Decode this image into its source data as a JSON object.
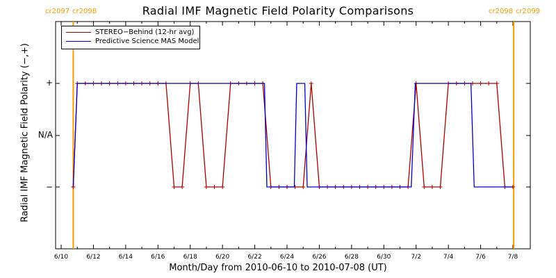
{
  "chart_data": {
    "type": "line",
    "title": "Radial IMF Magnetic Field Polarity Comparisons",
    "xlabel": "Month/Day from 2010-06-10 to 2010-07-08 (UT)",
    "ylabel": "Radial IMF Magnetic Field Polarity (−,+)",
    "xlim": [
      "2010-06-10",
      "2010-07-08"
    ],
    "x_tick_labels": [
      "6/10",
      "6/12",
      "6/14",
      "6/16",
      "6/18",
      "6/20",
      "6/22",
      "6/24",
      "6/26",
      "6/28",
      "6/30",
      "7/2",
      "7/4",
      "7/6",
      "7/8"
    ],
    "y_tick_labels": [
      "+",
      "N/A",
      "−"
    ],
    "y_levels": {
      "+": 1,
      "N/A": 0,
      "−": -1
    },
    "ylim": [
      -1.6,
      2.0
    ],
    "carrington_markers": [
      {
        "label_left": "cr2097",
        "label_right": "cr2098",
        "date": "2010-06-10.75"
      },
      {
        "label_left": "cr2098",
        "label_right": "cr2099",
        "date": "2010-07-08.05"
      }
    ],
    "colors": {
      "stereo": "#aa0000",
      "model": "#0000cc",
      "marker": "#ff9900",
      "frame": "#000000"
    },
    "series": [
      {
        "name": "STEREO−Behind (12-hr avg)",
        "color": "#aa0000",
        "x": [
          10.75,
          11.0,
          11.5,
          12.0,
          12.5,
          13.0,
          13.5,
          14.0,
          14.5,
          15.0,
          15.5,
          16.0,
          16.5,
          17.0,
          17.5,
          18.0,
          18.5,
          19.0,
          19.5,
          20.0,
          20.5,
          21.0,
          21.5,
          22.0,
          22.5,
          23.0,
          23.5,
          24.0,
          24.5,
          25.0,
          25.5,
          26.0,
          26.5,
          27.0,
          27.5,
          28.0,
          28.5,
          29.0,
          29.5,
          30.0,
          30.5,
          31.0,
          31.5,
          32.0,
          32.5,
          33.0,
          33.5,
          34.0,
          34.5,
          35.0,
          35.5,
          36.0,
          36.5,
          37.0,
          37.5,
          38.0
        ],
        "y": [
          -1,
          1,
          1,
          1,
          1,
          1,
          1,
          1,
          1,
          1,
          1,
          1,
          1,
          -1,
          -1,
          1,
          1,
          -1,
          -1,
          -1,
          1,
          1,
          1,
          1,
          1,
          -1,
          -1,
          -1,
          -1,
          -1,
          1,
          -1,
          -1,
          -1,
          -1,
          -1,
          -1,
          -1,
          -1,
          -1,
          -1,
          -1,
          -1,
          1,
          -1,
          -1,
          -1,
          1,
          1,
          1,
          1,
          1,
          1,
          1,
          -1,
          -1
        ]
      },
      {
        "name": "Predictive Science MAS Model",
        "color": "#0000cc",
        "x": [
          10.75,
          11.0,
          22.6,
          22.75,
          24.45,
          24.6,
          25.1,
          25.25,
          31.7,
          31.95,
          35.4,
          35.6,
          38.0
        ],
        "y": [
          -1,
          1,
          1,
          -1,
          -1,
          1,
          1,
          -1,
          -1,
          1,
          1,
          -1,
          -1
        ]
      }
    ]
  },
  "title": "Radial IMF Magnetic Field Polarity Comparisons",
  "cr_left_a": "cr2097",
  "cr_left_b": "cr2098",
  "cr_right_a": "cr2098",
  "cr_right_b": "cr2099",
  "xlabel": "Month/Day from 2010-06-10 to 2010-07-08 (UT)",
  "ylabel": "Radial IMF Magnetic Field Polarity (−,+)",
  "ytick_plus": "+",
  "ytick_na": "N/A",
  "ytick_minus": "−",
  "legend": {
    "stereo_label": "STEREO−Behind (12-hr avg)",
    "model_label": "Predictive Science MAS Model"
  }
}
